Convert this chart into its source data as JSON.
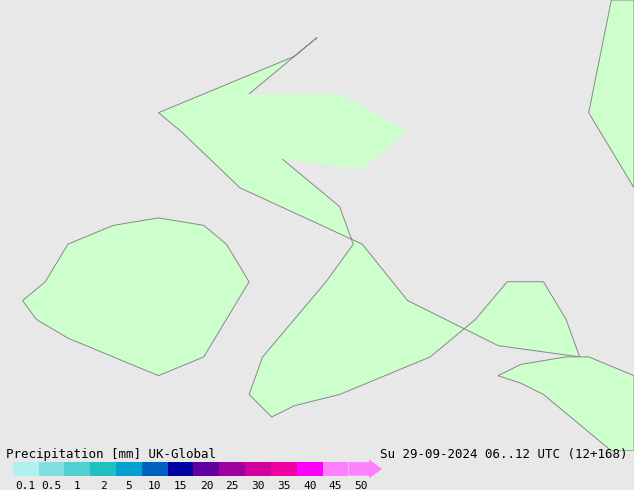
{
  "title_left": "Precipitation [mm] UK-Global",
  "title_right": "Su 29-09-2024 06..12 UTC (12+168)",
  "colorbar_levels": [
    0.1,
    0.5,
    1,
    2,
    5,
    10,
    15,
    20,
    25,
    30,
    35,
    40,
    45,
    50
  ],
  "colorbar_colors": [
    "#b0f0f0",
    "#80e0e0",
    "#50d0d0",
    "#20c0c0",
    "#00a0d0",
    "#0060c0",
    "#0000a0",
    "#6000a0",
    "#a000a0",
    "#d000a0",
    "#f000a0",
    "#ff00ff",
    "#ff80ff"
  ],
  "bg_color": "#e8e8e8",
  "map_bg": "#e8e8e8",
  "land_color": "#ccffcc",
  "border_color": "#888888",
  "font_size_title": 9,
  "font_size_ticks": 8
}
